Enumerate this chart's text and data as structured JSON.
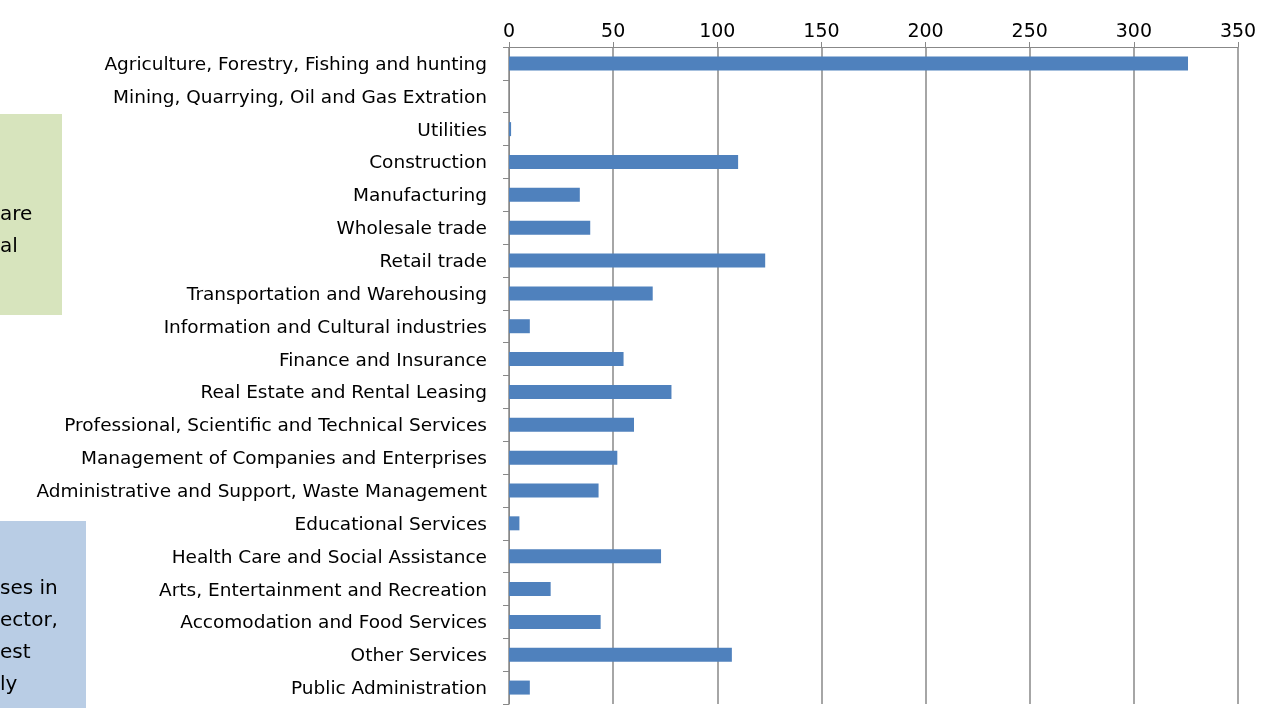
{
  "chart_data": {
    "type": "bar",
    "orientation": "horizontal",
    "categories": [
      "Agriculture, Forestry, Fishing and hunting",
      "Mining, Quarrying, Oil and Gas Extration",
      "Utilities",
      "Construction",
      "Manufacturing",
      "Wholesale trade",
      "Retail trade",
      "Transportation and Warehousing",
      "Information and Cultural industries",
      "Finance and Insurance",
      "Real Estate and Rental Leasing",
      "Professional, Scientific and Technical Services",
      "Management of Companies and Enterprises",
      "Administrative and Support, Waste Management",
      "Educational Services",
      "Health Care and Social Assistance",
      "Arts, Entertainment and Recreation",
      "Accomodation and Food Services",
      "Other Services",
      "Public Administration"
    ],
    "values": [
      326,
      0,
      1,
      110,
      34,
      39,
      123,
      69,
      10,
      55,
      78,
      60,
      52,
      43,
      5,
      73,
      20,
      44,
      107,
      10
    ],
    "color": "#4f81bd",
    "xlim": [
      0,
      350
    ],
    "xticks": [
      0,
      50,
      100,
      150,
      200,
      250,
      300,
      350
    ],
    "grid": "x",
    "annotations": [
      "are\nal",
      "ses in\nector,\nest\nly"
    ]
  }
}
